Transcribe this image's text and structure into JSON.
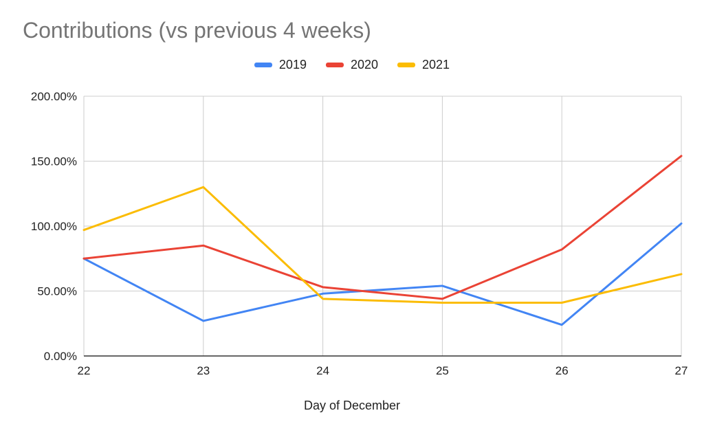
{
  "chart_data": {
    "type": "line",
    "title": "Contributions (vs previous 4 weeks)",
    "xlabel": "Day of December",
    "ylabel": "",
    "x": [
      22,
      23,
      24,
      25,
      26,
      27
    ],
    "y_ticks": [
      0,
      50,
      100,
      150,
      200
    ],
    "y_tick_labels": [
      "0.00%",
      "50.00%",
      "100.00%",
      "150.00%",
      "200.00%"
    ],
    "ylim": [
      0,
      200
    ],
    "grid": true,
    "legend_position": "top-center",
    "series": [
      {
        "name": "2019",
        "color": "#4285F4",
        "values": [
          75,
          27,
          48,
          54,
          24,
          102
        ]
      },
      {
        "name": "2020",
        "color": "#EA4335",
        "values": [
          75,
          85,
          53,
          44,
          82,
          154
        ]
      },
      {
        "name": "2021",
        "color": "#FBBC04",
        "values": [
          97,
          130,
          44,
          41,
          41,
          63
        ]
      }
    ]
  }
}
